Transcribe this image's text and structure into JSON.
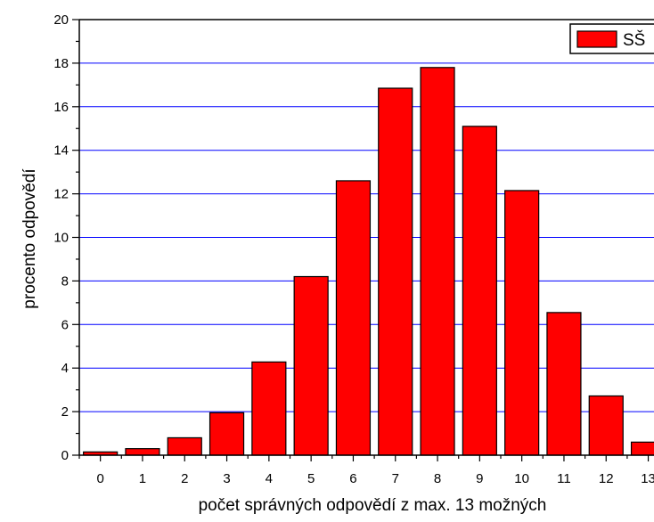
{
  "chart_data": {
    "type": "bar",
    "categories": [
      "0",
      "1",
      "2",
      "3",
      "4",
      "5",
      "6",
      "7",
      "8",
      "9",
      "10",
      "11",
      "12",
      "13"
    ],
    "series": [
      {
        "name": "SŠ",
        "color": "#ff0000",
        "values": [
          0.15,
          0.3,
          0.8,
          1.95,
          4.28,
          8.2,
          12.6,
          16.85,
          17.8,
          15.1,
          12.15,
          6.55,
          2.72,
          0.6
        ]
      }
    ],
    "xlabel": "počet správných odpovědí  z max. 13 možných",
    "ylabel": "procento odpovědí",
    "ylim": [
      0,
      20
    ],
    "yticks": [
      0,
      2,
      4,
      6,
      8,
      10,
      12,
      14,
      16,
      18,
      20
    ],
    "grid": "horizontal",
    "grid_color": "#0000ff",
    "legend_position": "top-right"
  }
}
